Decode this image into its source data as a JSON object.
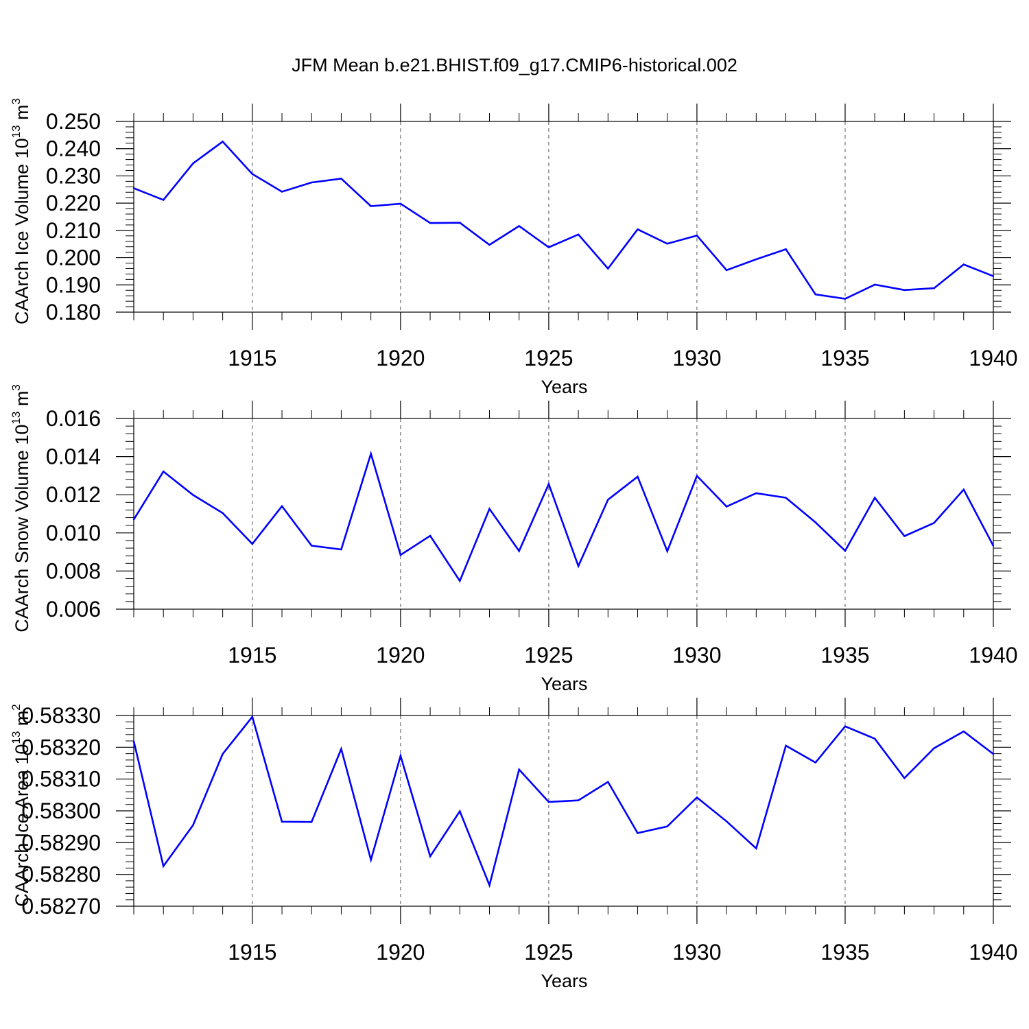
{
  "title": "JFM Mean b.e21.BHIST.f09_g17.CMIP6-historical.002",
  "series_color": "#0000ff",
  "chart_data": [
    {
      "type": "line",
      "ylabel": "CAArch Ice Volume 10",
      "ylabel_sup": "13",
      "ylabel_unit": " m",
      "ylabel_unit_sup": "3",
      "xlabel": "Years",
      "xlim": [
        1911,
        1940
      ],
      "ylim": [
        0.18,
        0.25
      ],
      "yticks": [
        0.18,
        0.19,
        0.2,
        0.21,
        0.22,
        0.23,
        0.24,
        0.25
      ],
      "ytick_labels": [
        "0.180",
        "0.190",
        "0.200",
        "0.210",
        "0.220",
        "0.230",
        "0.240",
        "0.250"
      ],
      "xticks": [
        1915,
        1920,
        1925,
        1930,
        1935,
        1940
      ],
      "xtick_labels": [
        "1915",
        "1920",
        "1925",
        "1930",
        "1935",
        "1940"
      ],
      "grid": "vertical-dashed",
      "x": [
        1911,
        1912,
        1913,
        1914,
        1915,
        1916,
        1917,
        1918,
        1919,
        1920,
        1921,
        1922,
        1923,
        1924,
        1925,
        1926,
        1927,
        1928,
        1929,
        1930,
        1931,
        1932,
        1933,
        1934,
        1935,
        1936,
        1937,
        1938,
        1939,
        1940
      ],
      "values": [
        0.2255,
        0.2212,
        0.2346,
        0.2426,
        0.2307,
        0.2242,
        0.2276,
        0.229,
        0.2189,
        0.2198,
        0.2127,
        0.2128,
        0.2047,
        0.2116,
        0.2038,
        0.2085,
        0.196,
        0.2104,
        0.2051,
        0.2081,
        0.1954,
        0.1994,
        0.2031,
        0.1865,
        0.1849,
        0.1901,
        0.1881,
        0.1888,
        0.1975,
        0.1932
      ]
    },
    {
      "type": "line",
      "ylabel": "CAArch Snow Volume 10",
      "ylabel_sup": "13",
      "ylabel_unit": " m",
      "ylabel_unit_sup": "3",
      "xlabel": "Years",
      "xlim": [
        1911,
        1940
      ],
      "ylim": [
        0.006,
        0.016
      ],
      "yticks": [
        0.006,
        0.008,
        0.01,
        0.012,
        0.014,
        0.016
      ],
      "ytick_labels": [
        "0.006",
        "0.008",
        "0.010",
        "0.012",
        "0.014",
        "0.016"
      ],
      "xticks": [
        1915,
        1920,
        1925,
        1930,
        1935,
        1940
      ],
      "xtick_labels": [
        "1915",
        "1920",
        "1925",
        "1930",
        "1935",
        "1940"
      ],
      "grid": "vertical-dashed",
      "x": [
        1911,
        1912,
        1913,
        1914,
        1915,
        1916,
        1917,
        1918,
        1919,
        1920,
        1921,
        1922,
        1923,
        1924,
        1925,
        1926,
        1927,
        1928,
        1929,
        1930,
        1931,
        1932,
        1933,
        1934,
        1935,
        1936,
        1937,
        1938,
        1939,
        1940
      ],
      "values": [
        0.0107,
        0.01322,
        0.01199,
        0.01104,
        0.00942,
        0.0114,
        0.00933,
        0.00913,
        0.01415,
        0.00884,
        0.00985,
        0.00748,
        0.01126,
        0.00905,
        0.01256,
        0.00826,
        0.01174,
        0.01295,
        0.00904,
        0.01299,
        0.01138,
        0.01208,
        0.01184,
        0.01055,
        0.00906,
        0.01184,
        0.00983,
        0.01052,
        0.01227,
        0.00932
      ]
    },
    {
      "type": "line",
      "ylabel": "CAArch Ice Area 10",
      "ylabel_sup": "13",
      "ylabel_unit": " m",
      "ylabel_unit_sup": "2",
      "xlabel": "Years",
      "xlim": [
        1911,
        1940
      ],
      "ylim": [
        0.5827,
        0.5833
      ],
      "yticks": [
        0.5827,
        0.5828,
        0.5829,
        0.583,
        0.5831,
        0.5832,
        0.5833
      ],
      "ytick_labels": [
        "0.58270",
        "0.58280",
        "0.58290",
        "0.58300",
        "0.58310",
        "0.58320",
        "0.58330"
      ],
      "xticks": [
        1915,
        1920,
        1925,
        1930,
        1935,
        1940
      ],
      "xtick_labels": [
        "1915",
        "1920",
        "1925",
        "1930",
        "1935",
        "1940"
      ],
      "grid": "vertical-dashed",
      "x": [
        1911,
        1912,
        1913,
        1914,
        1915,
        1916,
        1917,
        1918,
        1919,
        1920,
        1921,
        1922,
        1923,
        1924,
        1925,
        1926,
        1927,
        1928,
        1929,
        1930,
        1931,
        1932,
        1933,
        1934,
        1935,
        1936,
        1937,
        1938,
        1939,
        1940
      ],
      "values": [
        0.583219,
        0.582826,
        0.582955,
        0.583179,
        0.583296,
        0.582966,
        0.582965,
        0.583195,
        0.582846,
        0.583173,
        0.582857,
        0.582999,
        0.582766,
        0.58313,
        0.583028,
        0.583033,
        0.583091,
        0.58293,
        0.582951,
        0.583042,
        0.582967,
        0.582882,
        0.583205,
        0.583152,
        0.583266,
        0.583227,
        0.583103,
        0.583197,
        0.58325,
        0.583179
      ]
    }
  ]
}
